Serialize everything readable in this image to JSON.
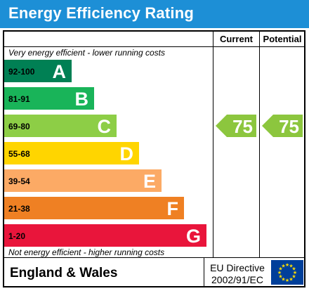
{
  "title": "Energy Efficiency Rating",
  "columns": {
    "current": "Current",
    "potential": "Potential"
  },
  "top_caption": "Very energy efficient - lower running costs",
  "bottom_caption": "Not energy efficient - higher running costs",
  "footer": {
    "region": "England & Wales",
    "directive_line1": "EU Directive",
    "directive_line2": "2002/91/EC"
  },
  "colors": {
    "title_bg": "#1d8fd6",
    "flag_bg": "#003f9a",
    "star": "#ffdd00",
    "arrow": "#8cc63e"
  },
  "chart_data": {
    "type": "bar",
    "title": "Energy Efficiency Rating",
    "bands": [
      {
        "range": "92-100",
        "letter": "A",
        "color": "#008054"
      },
      {
        "range": "81-91",
        "letter": "B",
        "color": "#19b459"
      },
      {
        "range": "69-80",
        "letter": "C",
        "color": "#8dce46"
      },
      {
        "range": "55-68",
        "letter": "D",
        "color": "#ffd500"
      },
      {
        "range": "39-54",
        "letter": "E",
        "color": "#fcaa65"
      },
      {
        "range": "21-38",
        "letter": "F",
        "color": "#ef8023"
      },
      {
        "range": "1-20",
        "letter": "G",
        "color": "#e9153b"
      }
    ],
    "current": {
      "value": 75,
      "band": "C"
    },
    "potential": {
      "value": 75,
      "band": "C"
    }
  }
}
